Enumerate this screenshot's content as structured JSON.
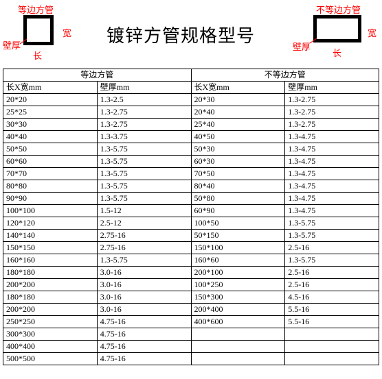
{
  "header": {
    "title": "镀锌方管规格型号",
    "left_diagram": {
      "top_label": "等边方管",
      "right_label": "宽",
      "bottom_label": "长",
      "wall_label": "壁厚"
    },
    "right_diagram": {
      "top_label": "不等边方管",
      "right_label": "宽",
      "bottom_label": "长",
      "wall_label": "壁厚"
    }
  },
  "table": {
    "group_left": "等边方管",
    "group_right": "不等边方管",
    "col_a": "长X宽mm",
    "col_b": "壁厚mm",
    "col_c": "长X宽mm",
    "col_d": "壁厚mm",
    "rows": [
      {
        "a": "20*20",
        "b": "1.3-2.5",
        "c": "20*30",
        "d": "1.3-2.75"
      },
      {
        "a": "25*25",
        "b": "1.3-2.75",
        "c": "20*40",
        "d": "1.3-2.75"
      },
      {
        "a": "30*30",
        "b": "1.3-2.75",
        "c": "25*40",
        "d": "1.3-2.75"
      },
      {
        "a": "40*40",
        "b": "1.3-3.75",
        "c": "40*50",
        "d": "1.3-4.75"
      },
      {
        "a": "50*50",
        "b": "1.3-5.75",
        "c": "50*30",
        "d": "1.3-4.75"
      },
      {
        "a": "60*60",
        "b": "1.3-5.75",
        "c": "60*30",
        "d": "1.3-4.75"
      },
      {
        "a": "70*70",
        "b": "1.3-5.75",
        "c": "70*50",
        "d": "1.3-4.75"
      },
      {
        "a": "80*80",
        "b": "1.3-5.75",
        "c": "80*40",
        "d": "1.3-4.75"
      },
      {
        "a": "90*90",
        "b": "1.3-5.75",
        "c": "50*80",
        "d": "1.3-4.75"
      },
      {
        "a": "100*100",
        "b": "1.5-12",
        "c": "60*90",
        "d": "1.3-4.75"
      },
      {
        "a": "120*120",
        "b": "2.5-12",
        "c": "100*50",
        "d": "1.3-5.75"
      },
      {
        "a": "140*140",
        "b": "2.75-16",
        "c": "50*150",
        "d": "1.3-5.75"
      },
      {
        "a": "150*150",
        "b": "2.75-16",
        "c": "150*100",
        "d": "2.5-16"
      },
      {
        "a": "160*160",
        "b": "1.3-5.75",
        "c": "160*60",
        "d": "1.3-5.75"
      },
      {
        "a": "180*180",
        "b": "3.0-16",
        "c": "200*100",
        "d": "2.5-16"
      },
      {
        "a": "200*200",
        "b": "3.0-16",
        "c": "100*250",
        "d": "2.5-16"
      },
      {
        "a": "180*180",
        "b": "3.0-16",
        "c": "150*300",
        "d": "4.5-16"
      },
      {
        "a": "200*200",
        "b": "3.0-16",
        "c": "200*400",
        "d": "5.5-16"
      },
      {
        "a": "250*250",
        "b": "4.75-16",
        "c": "400*600",
        "d": "5.5-16"
      },
      {
        "a": "300*300",
        "b": "4.75-16",
        "c": "",
        "d": ""
      },
      {
        "a": "400*400",
        "b": "4.75-16",
        "c": "",
        "d": ""
      },
      {
        "a": "500*500",
        "b": "4.75-16",
        "c": "",
        "d": ""
      }
    ]
  },
  "style": {
    "label_color": "#ff0000",
    "border_color": "#000000",
    "background": "#ffffff",
    "title_fontsize_pt": 20,
    "body_fontsize_pt": 9
  }
}
